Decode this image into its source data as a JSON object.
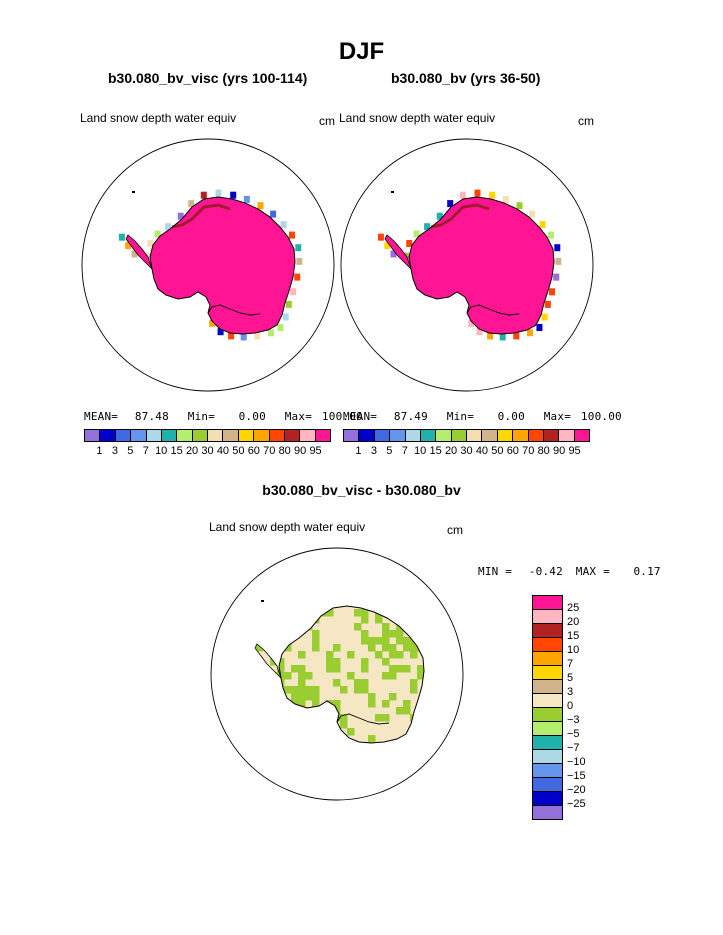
{
  "page": {
    "title": "DJF",
    "left_title": "b30.080_bv_visc (yrs 100-114)",
    "right_title": "b30.080_bv (yrs 36-50)",
    "diff_title": "b30.080_bv_visc - b30.080_bv"
  },
  "maps": {
    "left": {
      "variable": "Land snow depth water equiv",
      "units": "cm",
      "mean_label": "MEAN=",
      "mean": "87.48",
      "min_label": "Min=",
      "min": "0.00",
      "max_label": "Max=",
      "max": "100.00"
    },
    "right": {
      "variable": "Land snow depth water equiv",
      "units": "cm",
      "mean_label": "MEAN=",
      "mean": "87.49",
      "min_label": "Min=",
      "min": "0.00",
      "max_label": "Max=",
      "max": "100.00"
    },
    "diff": {
      "variable": "Land snow depth water equiv",
      "units": "cm",
      "min_label": "MIN =",
      "min": "-0.42",
      "max_label": "MAX =",
      "max": "0.17"
    }
  },
  "chart_data": [
    {
      "type": "heatmap",
      "title": "b30.080_bv_visc (yrs 100-114)",
      "variable": "Land snow depth water equiv",
      "units": "cm",
      "region": "Antarctica (south polar stereographic)",
      "stats": {
        "mean": 87.48,
        "min": 0.0,
        "max": 100.0
      },
      "colorbar": {
        "levels": [
          "1",
          "3",
          "5",
          "7",
          "10",
          "15",
          "20",
          "30",
          "40",
          "50",
          "60",
          "70",
          "80",
          "90",
          "95"
        ],
        "colors": [
          "#9370DB",
          "#0000CD",
          "#4169E1",
          "#6495ED",
          "#ADD8E6",
          "#20B2AA",
          "#B4EE6E",
          "#9ACD32",
          "#F5DEB3",
          "#D2B48C",
          "#FFD700",
          "#FFA500",
          "#FF4500",
          "#B22222",
          "#FFB6C1",
          "#FF1493"
        ]
      },
      "dominant_color": "#FF1493"
    },
    {
      "type": "heatmap",
      "title": "b30.080_bv (yrs 36-50)",
      "variable": "Land snow depth water equiv",
      "units": "cm",
      "region": "Antarctica (south polar stereographic)",
      "stats": {
        "mean": 87.49,
        "min": 0.0,
        "max": 100.0
      },
      "colorbar": {
        "levels": [
          "1",
          "3",
          "5",
          "7",
          "10",
          "15",
          "20",
          "30",
          "40",
          "50",
          "60",
          "70",
          "80",
          "90",
          "95"
        ],
        "colors": [
          "#9370DB",
          "#0000CD",
          "#4169E1",
          "#6495ED",
          "#ADD8E6",
          "#20B2AA",
          "#B4EE6E",
          "#9ACD32",
          "#F5DEB3",
          "#D2B48C",
          "#FFD700",
          "#FFA500",
          "#FF4500",
          "#B22222",
          "#FFB6C1",
          "#FF1493"
        ]
      },
      "dominant_color": "#FF1493"
    },
    {
      "type": "heatmap",
      "title": "b30.080_bv_visc - b30.080_bv",
      "variable": "Land snow depth water equiv",
      "units": "cm",
      "region": "Antarctica (south polar stereographic)",
      "stats": {
        "min": -0.42,
        "max": 0.17
      },
      "colorbar": {
        "levels": [
          "25",
          "20",
          "15",
          "10",
          "7",
          "5",
          "3",
          "0",
          "−3",
          "−5",
          "−7",
          "−10",
          "−15",
          "−20",
          "−25"
        ],
        "colors": [
          "#FF1493",
          "#FFB6C1",
          "#B22222",
          "#FF4500",
          "#FFA500",
          "#FFD700",
          "#D2B48C",
          "#F5E6C4",
          "#9ACD32",
          "#B4EE6E",
          "#20B2AA",
          "#ADD8E6",
          "#6495ED",
          "#4169E1",
          "#0000CD",
          "#9370DB"
        ]
      },
      "dominant_colors": [
        "#F5E6C4",
        "#9ACD32"
      ]
    }
  ]
}
